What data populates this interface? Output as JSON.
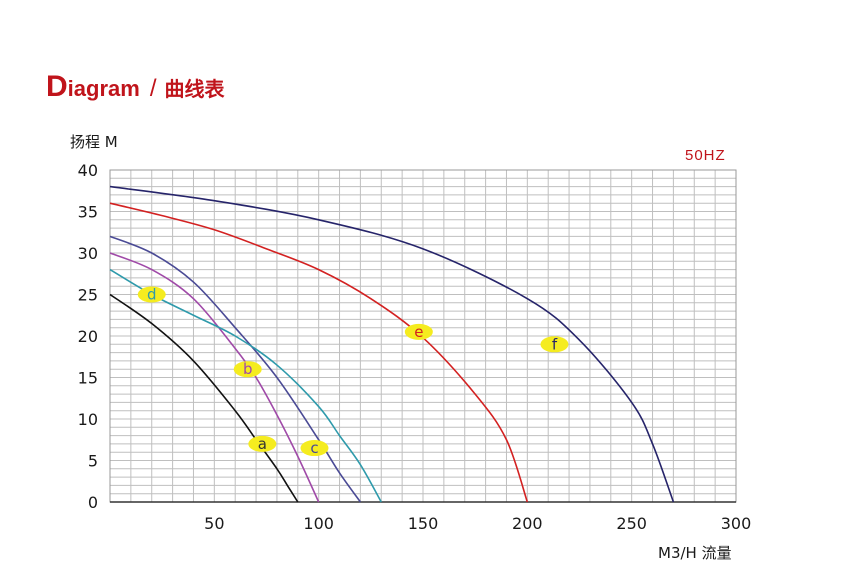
{
  "header": {
    "title_first_letter": "D",
    "title_rest": "iagram",
    "separator": "/",
    "title_cn": "曲线表"
  },
  "chart_data": {
    "type": "line",
    "ylabel": "扬程 M",
    "xlabel": "M3/H 流量",
    "annotation": "50HZ",
    "xlim": [
      0,
      300
    ],
    "ylim": [
      0,
      40
    ],
    "xticks": [
      50,
      100,
      150,
      200,
      250,
      300
    ],
    "yticks": [
      0,
      5,
      10,
      15,
      20,
      25,
      30,
      35,
      40
    ],
    "grid": true,
    "colors": {
      "title": "#c0141b",
      "grid": "#bfbfbf",
      "label_bg": "#f5ec1f"
    },
    "series": [
      {
        "name": "a",
        "color": "#111111",
        "label_at": [
          73,
          7
        ],
        "label_color": "#333333",
        "x": [
          0,
          20,
          40,
          60,
          70,
          80,
          85,
          90
        ],
        "y": [
          25,
          21.5,
          17,
          11,
          7.5,
          4,
          2,
          0
        ]
      },
      {
        "name": "b",
        "color": "#a04aa8",
        "label_at": [
          66,
          16
        ],
        "label_color": "#a04aa8",
        "x": [
          0,
          20,
          40,
          60,
          70,
          80,
          90,
          100
        ],
        "y": [
          30,
          28,
          24.5,
          18.5,
          15,
          10.5,
          5.5,
          0
        ]
      },
      {
        "name": "c",
        "color": "#4a4a95",
        "label_at": [
          98,
          6.5
        ],
        "label_color": "#4a4a95",
        "x": [
          0,
          20,
          40,
          60,
          80,
          100,
          110,
          120
        ],
        "y": [
          32,
          30,
          26.5,
          21,
          15,
          7.5,
          3.5,
          0
        ]
      },
      {
        "name": "d",
        "color": "#2e9aab",
        "label_at": [
          20,
          25
        ],
        "label_color": "#2e9aab",
        "x": [
          0,
          20,
          40,
          60,
          80,
          100,
          110,
          120,
          130
        ],
        "y": [
          28,
          25,
          22.5,
          20,
          16.5,
          11.5,
          8,
          4.5,
          0
        ]
      },
      {
        "name": "e",
        "color": "#d32121",
        "label_at": [
          148,
          20.5
        ],
        "label_color": "#d32121",
        "x": [
          0,
          25,
          50,
          75,
          100,
          125,
          150,
          175,
          190,
          200
        ],
        "y": [
          36,
          34.5,
          32.8,
          30.5,
          28,
          24.5,
          19.8,
          13,
          7.5,
          0
        ]
      },
      {
        "name": "f",
        "color": "#26246a",
        "label_at": [
          213,
          19
        ],
        "label_color": "#26246a",
        "x": [
          0,
          50,
          100,
          150,
          200,
          225,
          250,
          260,
          270
        ],
        "y": [
          38,
          36.3,
          34,
          30.5,
          24.5,
          19.5,
          12,
          7,
          0
        ]
      }
    ]
  }
}
